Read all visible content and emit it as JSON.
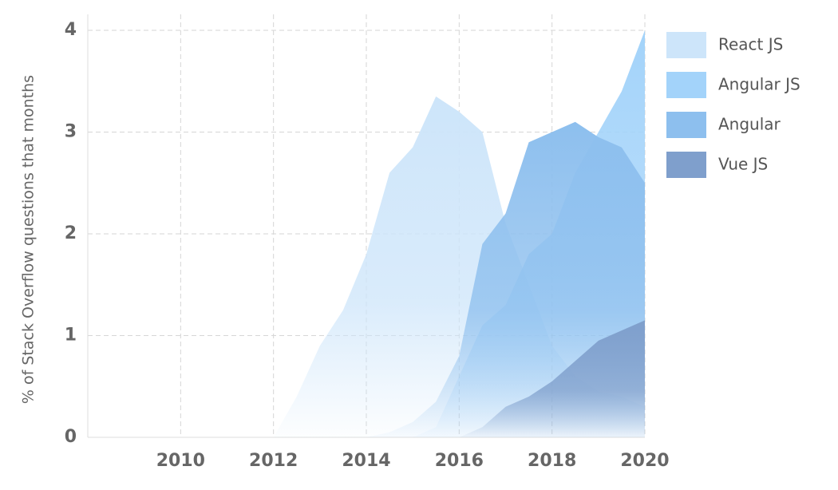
{
  "chart_data": {
    "type": "area",
    "y_label": "% of Stack Overflow questions that months",
    "x": [
      2012,
      2012.5,
      2013,
      2013.5,
      2014,
      2014.5,
      2015,
      2015.5,
      2016,
      2016.5,
      2017,
      2017.5,
      2018,
      2018.5,
      2019,
      2019.5,
      2020
    ],
    "series": [
      {
        "name": "React JS",
        "color": "#cde5fa",
        "values": [
          0,
          0.4,
          0.9,
          1.25,
          1.8,
          2.6,
          2.85,
          3.35,
          3.2,
          3.0,
          2.1,
          1.5,
          0.9,
          0.6,
          0.45,
          0.4,
          0.3
        ]
      },
      {
        "name": "Angular JS",
        "color": "#a3d3fa",
        "values": [
          0,
          0,
          0,
          0,
          0,
          0,
          0,
          0.1,
          0.6,
          1.1,
          1.3,
          1.8,
          2.0,
          2.6,
          3.0,
          3.4,
          4.0
        ]
      },
      {
        "name": "Angular",
        "color": "#8dbfee",
        "values": [
          0,
          0,
          0,
          0,
          0,
          0.05,
          0.15,
          0.35,
          0.8,
          1.9,
          2.2,
          2.9,
          3.0,
          3.1,
          2.95,
          2.85,
          2.5
        ]
      },
      {
        "name": "Vue JS",
        "color": "#7f9fcc",
        "values": [
          0,
          0,
          0,
          0,
          0,
          0,
          0,
          0,
          0,
          0.1,
          0.3,
          0.4,
          0.55,
          0.75,
          0.95,
          1.05,
          1.15
        ]
      }
    ],
    "xlim": [
      2008,
      2020
    ],
    "xticks": [
      2010,
      2012,
      2014,
      2016,
      2018,
      2020
    ],
    "ylim": [
      0,
      4
    ],
    "yticks": [
      0,
      1,
      2,
      3,
      4
    ],
    "grid": true,
    "legend": "right"
  }
}
